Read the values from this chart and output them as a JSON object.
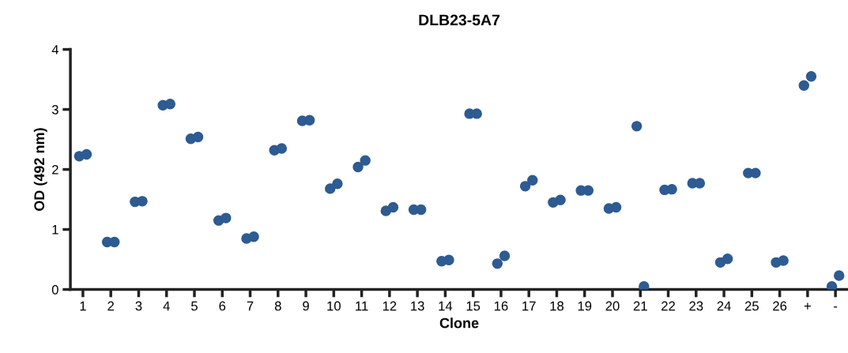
{
  "chart_data": {
    "type": "scatter",
    "title": "DLB23-5A7",
    "xlabel": "Clone",
    "ylabel": "OD (492 nm)",
    "categories": [
      "1",
      "2",
      "3",
      "4",
      "5",
      "6",
      "7",
      "8",
      "9",
      "10",
      "11",
      "12",
      "13",
      "14",
      "15",
      "16",
      "17",
      "18",
      "19",
      "20",
      "21",
      "22",
      "23",
      "24",
      "25",
      "26",
      "+",
      "-"
    ],
    "series": [
      {
        "color": "#2d5b92",
        "values": [
          2.22,
          0.79,
          1.46,
          3.07,
          2.51,
          1.15,
          0.85,
          2.32,
          2.81,
          1.68,
          2.04,
          1.31,
          1.33,
          0.47,
          2.93,
          0.43,
          1.72,
          1.45,
          1.65,
          1.35,
          2.72,
          1.66,
          1.77,
          0.45,
          1.94,
          0.45,
          3.4,
          0.05
        ]
      },
      {
        "color": "#2d5b92",
        "values": [
          2.25,
          0.79,
          1.47,
          3.09,
          2.54,
          1.19,
          0.88,
          2.35,
          2.82,
          1.76,
          2.15,
          1.37,
          1.33,
          0.49,
          2.93,
          0.56,
          1.82,
          1.49,
          1.65,
          1.37,
          0.05,
          1.67,
          1.77,
          0.51,
          1.94,
          0.48,
          3.55,
          0.23
        ]
      }
    ],
    "ylim": [
      0,
      4
    ],
    "yticks": [
      0,
      1,
      2,
      3,
      4
    ],
    "grid": false,
    "legend": false,
    "marker": "circle"
  }
}
